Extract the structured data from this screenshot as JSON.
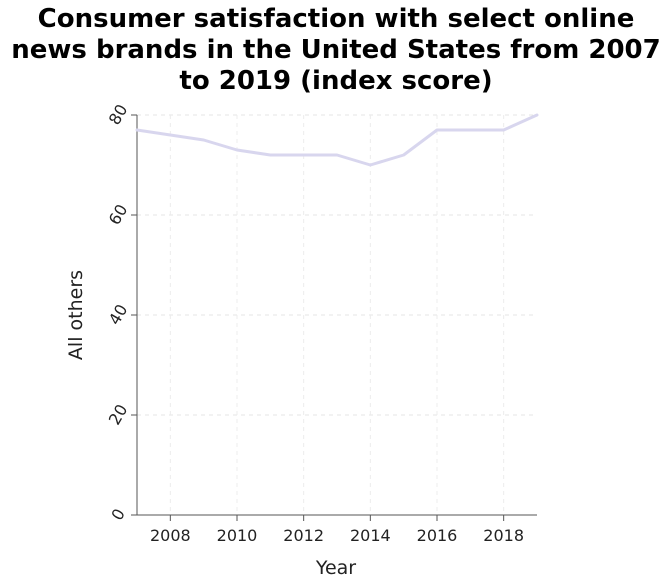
{
  "chart_data": {
    "type": "line",
    "title": [
      "Consumer satisfaction with select online",
      "news brands in the United States from 2007",
      "to 2019 (index score)"
    ],
    "xlabel": "Year",
    "ylabel": "All others",
    "xlim": [
      2007,
      2019
    ],
    "ylim": [
      0,
      80
    ],
    "x_ticks": [
      2008,
      2010,
      2012,
      2014,
      2016,
      2018
    ],
    "y_ticks": [
      0,
      20,
      40,
      60,
      80
    ],
    "grid": true,
    "line_color": "#d8d6ee",
    "series": [
      {
        "x": [
          2007,
          2008,
          2009,
          2010,
          2011,
          2012,
          2013,
          2014,
          2015,
          2016,
          2017,
          2018,
          2019
        ],
        "values": [
          77,
          76,
          75,
          73,
          72,
          72,
          72,
          70,
          72,
          77,
          77,
          77,
          80
        ]
      }
    ]
  }
}
